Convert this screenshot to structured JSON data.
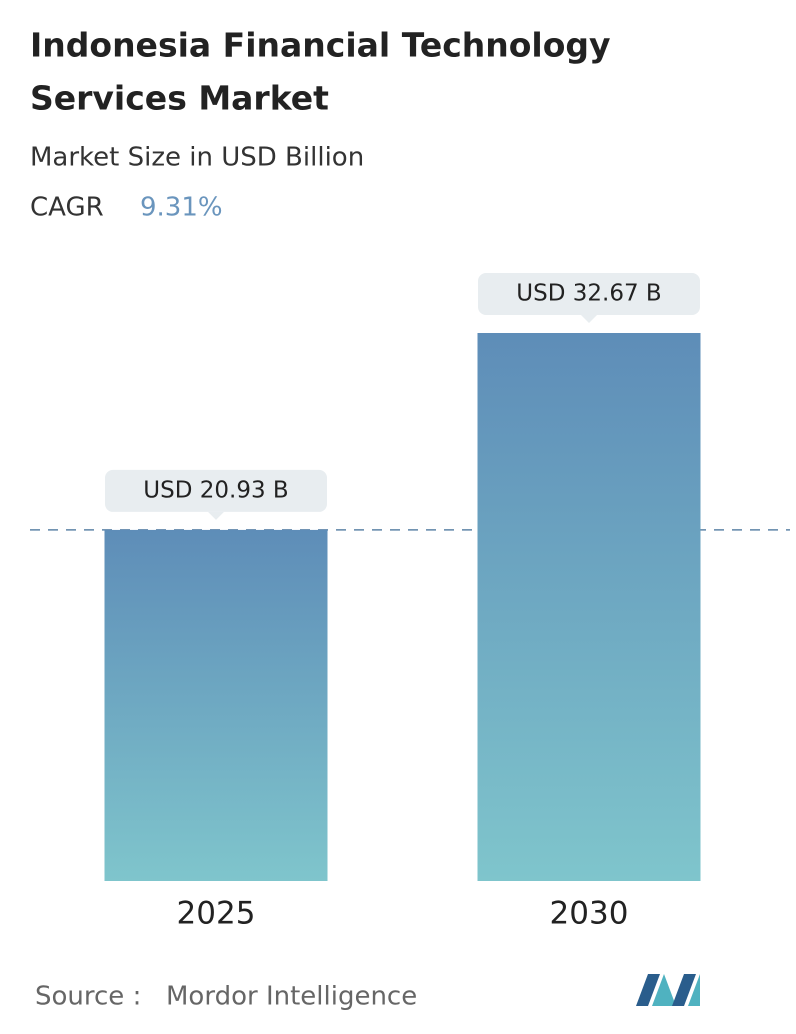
{
  "chart_data": {
    "type": "bar",
    "title_lines": [
      "Indonesia Financial Technology",
      "Services Market"
    ],
    "subtitle": "Market Size in USD Billion",
    "cagr_label": "CAGR",
    "cagr_value": "9.31%",
    "categories": [
      "2025",
      "2030"
    ],
    "values": [
      20.93,
      32.67
    ],
    "value_labels": [
      "USD 20.93 B",
      "USD 32.67 B"
    ],
    "gradient": [
      "#5e8db8",
      "#7fc5cc"
    ],
    "source_label": "Source :",
    "source": "Mordor Intelligence"
  }
}
